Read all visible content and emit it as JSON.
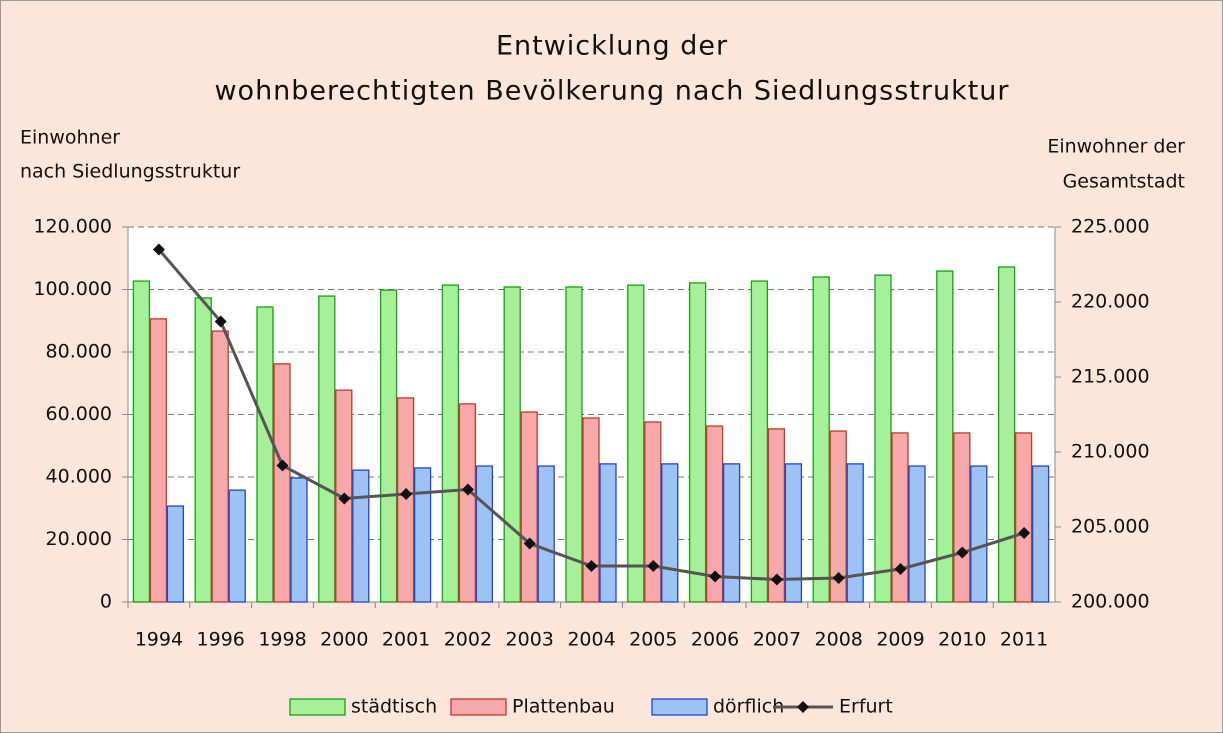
{
  "chart_data": {
    "type": "bar",
    "title": [
      "Entwicklung der",
      "wohnberechtigten Bevölkerung nach Siedlungsstruktur"
    ],
    "y_label": [
      "Einwohner",
      "nach Siedlungsstruktur"
    ],
    "y2_label": [
      "Einwohner der",
      "Gesamtstadt"
    ],
    "categories": [
      "1994",
      "1996",
      "1998",
      "2000",
      "2001",
      "2002",
      "2003",
      "2004",
      "2005",
      "2006",
      "2007",
      "2008",
      "2009",
      "2010",
      "2011"
    ],
    "series": [
      {
        "name": "städtisch",
        "type": "bar",
        "color": "#a6f09a",
        "edge": "#1a9e1a",
        "values": [
          102700,
          97300,
          94400,
          97900,
          99800,
          101400,
          100800,
          100800,
          101400,
          102100,
          102700,
          104000,
          104600,
          105900,
          107200
        ]
      },
      {
        "name": "Plattenbau",
        "type": "bar",
        "color": "#f7a8a8",
        "edge": "#c0392b",
        "values": [
          90600,
          86700,
          76200,
          67800,
          65300,
          63400,
          60800,
          58900,
          57600,
          56300,
          55400,
          54700,
          54100,
          54100,
          54100
        ]
      },
      {
        "name": "dörflich",
        "type": "bar",
        "color": "#9dc3f5",
        "edge": "#2244cc",
        "values": [
          30700,
          35800,
          39700,
          42200,
          42900,
          43500,
          43500,
          44200,
          44200,
          44200,
          44200,
          44200,
          43500,
          43500,
          43500
        ]
      },
      {
        "name": "Erfurt",
        "type": "line",
        "axis": "y2",
        "color": "#555555",
        "values": [
          223500,
          218700,
          209100,
          206900,
          207200,
          207500,
          203900,
          202400,
          202400,
          201700,
          201500,
          201600,
          202200,
          203300,
          204600
        ]
      }
    ],
    "ylim": [
      0,
      120000
    ],
    "yticks": [
      0,
      {
        "value": 20000,
        "label": "20.000"
      },
      {
        "value": 40000,
        "label": "40.000"
      },
      {
        "value": 60000,
        "label": "60.000"
      },
      {
        "value": 80000,
        "label": "80.000"
      },
      {
        "value": 100000,
        "label": "100.000"
      },
      {
        "value": 120000,
        "label": "120.000"
      }
    ],
    "y2lim": [
      200000,
      225000
    ],
    "y2ticks": [
      {
        "value": 200000,
        "label": "200.000"
      },
      {
        "value": 205000,
        "label": "205.000"
      },
      {
        "value": 210000,
        "label": "210.000"
      },
      {
        "value": 215000,
        "label": "215.000"
      },
      {
        "value": 220000,
        "label": "220.000"
      },
      {
        "value": 225000,
        "label": "225.000"
      }
    ],
    "grid": true,
    "legend": "bottom"
  }
}
